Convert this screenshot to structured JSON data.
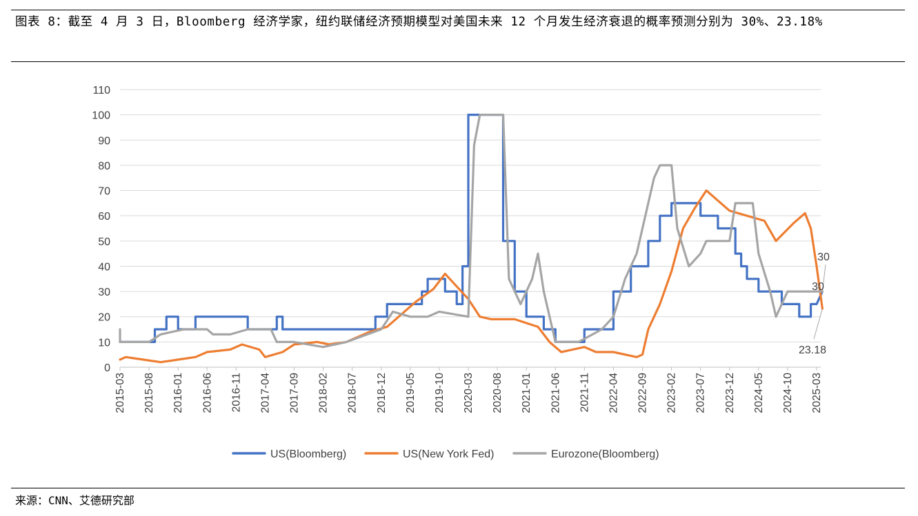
{
  "title": "图表 8：截至 4 月 3 日，Bloomberg 经济学家，纽约联储经济预期模型对美国未来 12 个月发生经济衰退的概率预测分别为 30%、23.18%",
  "source": "来源：CNN、艾德研究部",
  "chart_data": {
    "type": "line",
    "ylim": [
      0,
      110
    ],
    "yticks": [
      "0",
      "10",
      "20",
      "30",
      "40",
      "50",
      "60",
      "70",
      "80",
      "90",
      "100",
      "110"
    ],
    "xticks": [
      "2015-03",
      "2015-08",
      "2016-01",
      "2016-06",
      "2016-11",
      "2017-04",
      "2017-09",
      "2018-02",
      "2018-07",
      "2018-12",
      "2019-05",
      "2019-10",
      "2020-03",
      "2020-08",
      "2021-01",
      "2021-06",
      "2021-11",
      "2022-04",
      "2022-09",
      "2023-02",
      "2023-07",
      "2023-12",
      "2024-05",
      "2024-10",
      "2025-03"
    ],
    "grid": true,
    "legend_position": "bottom",
    "annotations": [
      {
        "label": "30",
        "series": "US(Bloomberg)",
        "x": "2025-04",
        "y": 30
      },
      {
        "label": "30",
        "series": "Eurozone(Bloomberg)",
        "x": "2025-04",
        "y": 30
      },
      {
        "label": "23.18",
        "series": "US(New York Fed)",
        "x": "2025-04",
        "y": 23.18
      }
    ],
    "series": [
      {
        "name": "US(Bloomberg)",
        "color": "#4472c4",
        "points": [
          [
            "2015-03",
            10
          ],
          [
            "2015-09",
            10
          ],
          [
            "2015-09",
            15
          ],
          [
            "2015-11",
            15
          ],
          [
            "2015-11",
            20
          ],
          [
            "2016-01",
            20
          ],
          [
            "2016-01",
            15
          ],
          [
            "2016-04",
            15
          ],
          [
            "2016-04",
            20
          ],
          [
            "2017-01",
            20
          ],
          [
            "2017-01",
            15
          ],
          [
            "2017-06",
            15
          ],
          [
            "2017-06",
            20
          ],
          [
            "2017-07",
            20
          ],
          [
            "2017-07",
            15
          ],
          [
            "2018-11",
            15
          ],
          [
            "2018-11",
            20
          ],
          [
            "2019-01",
            20
          ],
          [
            "2019-01",
            25
          ],
          [
            "2019-07",
            25
          ],
          [
            "2019-07",
            30
          ],
          [
            "2019-08",
            30
          ],
          [
            "2019-08",
            35
          ],
          [
            "2019-11",
            35
          ],
          [
            "2019-11",
            30
          ],
          [
            "2020-01",
            30
          ],
          [
            "2020-01",
            25
          ],
          [
            "2020-02",
            25
          ],
          [
            "2020-02",
            40
          ],
          [
            "2020-03",
            40
          ],
          [
            "2020-03",
            100
          ],
          [
            "2020-09",
            100
          ],
          [
            "2020-09",
            50
          ],
          [
            "2020-11",
            50
          ],
          [
            "2020-11",
            30
          ],
          [
            "2021-01",
            30
          ],
          [
            "2021-01",
            20
          ],
          [
            "2021-04",
            20
          ],
          [
            "2021-04",
            15
          ],
          [
            "2021-06",
            15
          ],
          [
            "2021-06",
            10
          ],
          [
            "2021-11",
            10
          ],
          [
            "2021-11",
            15
          ],
          [
            "2022-04",
            15
          ],
          [
            "2022-04",
            30
          ],
          [
            "2022-07",
            30
          ],
          [
            "2022-07",
            40
          ],
          [
            "2022-10",
            40
          ],
          [
            "2022-10",
            50
          ],
          [
            "2022-12",
            50
          ],
          [
            "2022-12",
            60
          ],
          [
            "2023-02",
            60
          ],
          [
            "2023-02",
            65
          ],
          [
            "2023-07",
            65
          ],
          [
            "2023-07",
            60
          ],
          [
            "2023-10",
            60
          ],
          [
            "2023-10",
            55
          ],
          [
            "2024-01",
            55
          ],
          [
            "2024-01",
            45
          ],
          [
            "2024-02",
            45
          ],
          [
            "2024-02",
            40
          ],
          [
            "2024-03",
            40
          ],
          [
            "2024-03",
            35
          ],
          [
            "2024-05",
            35
          ],
          [
            "2024-05",
            30
          ],
          [
            "2024-09",
            30
          ],
          [
            "2024-09",
            25
          ],
          [
            "2024-12",
            25
          ],
          [
            "2024-12",
            20
          ],
          [
            "2025-02",
            20
          ],
          [
            "2025-02",
            25
          ],
          [
            "2025-03",
            25
          ],
          [
            "2025-04",
            30
          ]
        ]
      },
      {
        "name": "US(New York Fed)",
        "color": "#ed7d31",
        "points": [
          [
            "2015-03",
            3
          ],
          [
            "2015-04",
            4
          ],
          [
            "2015-07",
            3
          ],
          [
            "2015-10",
            2
          ],
          [
            "2016-01",
            3
          ],
          [
            "2016-04",
            4
          ],
          [
            "2016-06",
            6
          ],
          [
            "2016-10",
            7
          ],
          [
            "2016-12",
            9
          ],
          [
            "2017-03",
            7
          ],
          [
            "2017-04",
            4
          ],
          [
            "2017-07",
            6
          ],
          [
            "2017-09",
            9
          ],
          [
            "2018-01",
            10
          ],
          [
            "2018-03",
            9
          ],
          [
            "2018-06",
            10
          ],
          [
            "2018-10",
            14
          ],
          [
            "2019-01",
            16
          ],
          [
            "2019-04",
            22
          ],
          [
            "2019-06",
            26
          ],
          [
            "2019-09",
            31
          ],
          [
            "2019-11",
            37
          ],
          [
            "2020-01",
            32
          ],
          [
            "2020-03",
            27
          ],
          [
            "2020-05",
            20
          ],
          [
            "2020-07",
            19
          ],
          [
            "2020-11",
            19
          ],
          [
            "2021-03",
            16
          ],
          [
            "2021-05",
            10
          ],
          [
            "2021-07",
            6
          ],
          [
            "2021-11",
            8
          ],
          [
            "2022-01",
            6
          ],
          [
            "2022-04",
            6
          ],
          [
            "2022-08",
            4
          ],
          [
            "2022-09",
            5
          ],
          [
            "2022-10",
            15
          ],
          [
            "2022-12",
            25
          ],
          [
            "2023-02",
            38
          ],
          [
            "2023-04",
            55
          ],
          [
            "2023-06",
            63
          ],
          [
            "2023-08",
            70
          ],
          [
            "2023-10",
            66
          ],
          [
            "2023-12",
            62
          ],
          [
            "2024-03",
            60
          ],
          [
            "2024-06",
            58
          ],
          [
            "2024-08",
            50
          ],
          [
            "2024-11",
            57
          ],
          [
            "2025-01",
            61
          ],
          [
            "2025-02",
            55
          ],
          [
            "2025-03",
            40
          ],
          [
            "2025-04",
            23.18
          ]
        ]
      },
      {
        "name": "Eurozone(Bloomberg)",
        "color": "#a5a5a5",
        "points": [
          [
            "2015-03",
            15
          ],
          [
            "2015-03",
            10
          ],
          [
            "2015-08",
            10
          ],
          [
            "2015-10",
            13
          ],
          [
            "2016-02",
            15
          ],
          [
            "2016-06",
            15
          ],
          [
            "2016-07",
            13
          ],
          [
            "2016-10",
            13
          ],
          [
            "2017-01",
            15
          ],
          [
            "2017-05",
            15
          ],
          [
            "2017-06",
            10
          ],
          [
            "2017-09",
            10
          ],
          [
            "2018-02",
            8
          ],
          [
            "2018-06",
            10
          ],
          [
            "2018-12",
            15
          ],
          [
            "2019-02",
            22
          ],
          [
            "2019-05",
            20
          ],
          [
            "2019-08",
            20
          ],
          [
            "2019-10",
            22
          ],
          [
            "2020-03",
            20
          ],
          [
            "2020-04",
            88
          ],
          [
            "2020-05",
            100
          ],
          [
            "2020-09",
            100
          ],
          [
            "2020-10",
            35
          ],
          [
            "2020-12",
            25
          ],
          [
            "2021-02",
            35
          ],
          [
            "2021-03",
            45
          ],
          [
            "2021-04",
            30
          ],
          [
            "2021-06",
            10
          ],
          [
            "2021-10",
            10
          ],
          [
            "2022-02",
            15
          ],
          [
            "2022-04",
            20
          ],
          [
            "2022-06",
            35
          ],
          [
            "2022-08",
            45
          ],
          [
            "2022-10",
            65
          ],
          [
            "2022-11",
            75
          ],
          [
            "2022-12",
            80
          ],
          [
            "2023-02",
            80
          ],
          [
            "2023-03",
            55
          ],
          [
            "2023-05",
            40
          ],
          [
            "2023-07",
            45
          ],
          [
            "2023-08",
            50
          ],
          [
            "2023-12",
            50
          ],
          [
            "2024-01",
            65
          ],
          [
            "2024-04",
            65
          ],
          [
            "2024-05",
            45
          ],
          [
            "2024-07",
            30
          ],
          [
            "2024-08",
            20
          ],
          [
            "2024-10",
            30
          ],
          [
            "2025-01",
            30
          ],
          [
            "2025-04",
            30
          ]
        ]
      }
    ]
  }
}
